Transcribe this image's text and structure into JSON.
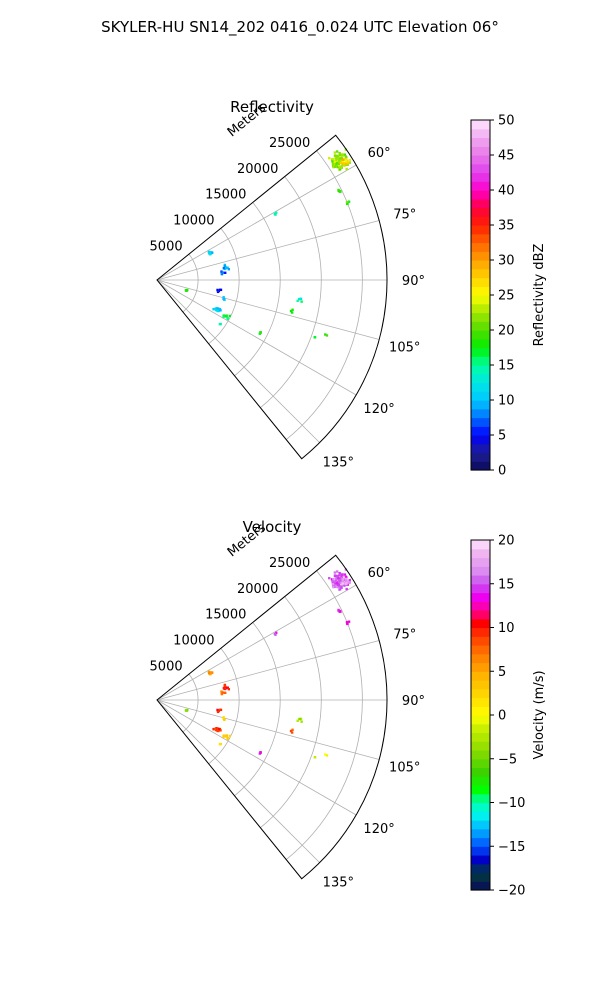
{
  "figure": {
    "suptitle": "SKYLER-HU  SN14_202  0416_0.024 UTC Elevation 06°"
  },
  "chart_data": [
    {
      "type": "polar-scatter",
      "title": "Reflectivity",
      "radial_label": "Meters",
      "theta_range_deg": [
        51,
        141
      ],
      "r_range": [
        0,
        28000
      ],
      "radial_ticks": [
        5000,
        10000,
        15000,
        20000,
        25000
      ],
      "radial_tick_labels": [
        "5000",
        "10000",
        "15000",
        "20000",
        "25000"
      ],
      "angle_ticks": [
        60,
        75,
        90,
        105,
        120,
        135
      ],
      "angle_tick_labels": [
        "60°",
        "75°",
        "90°",
        "105°",
        "120°",
        "135°"
      ],
      "grid": true,
      "colorbar": {
        "label": "Reflectivity dBZ",
        "min": 0,
        "max": 50,
        "ticks": [
          0,
          5,
          10,
          15,
          20,
          25,
          30,
          35,
          40,
          45,
          50
        ],
        "tick_labels": [
          "0",
          "5",
          "10",
          "15",
          "20",
          "25",
          "30",
          "35",
          "40",
          "45",
          "50"
        ]
      },
      "clusters": [
        {
          "angle": 57,
          "r": 26500,
          "v": 22,
          "n": 95,
          "sa": 3.5,
          "sr": 1500
        },
        {
          "angle": 58,
          "r": 27000,
          "v": 28,
          "n": 14,
          "sa": 1.5,
          "sr": 600
        },
        {
          "angle": 64,
          "r": 24800,
          "v": 20,
          "n": 5,
          "sa": 1.0,
          "sr": 400
        },
        {
          "angle": 68,
          "r": 25000,
          "v": 19,
          "n": 5,
          "sa": 1.0,
          "sr": 500
        },
        {
          "angle": 61,
          "r": 16500,
          "v": 15,
          "n": 3,
          "sa": 0.8,
          "sr": 300
        },
        {
          "angle": 63,
          "r": 7200,
          "v": 11,
          "n": 14,
          "sa": 3.0,
          "sr": 400
        },
        {
          "angle": 80,
          "r": 8400,
          "v": 10,
          "n": 12,
          "sa": 3.0,
          "sr": 500
        },
        {
          "angle": 84,
          "r": 8000,
          "v": 7,
          "n": 6,
          "sa": 3.0,
          "sr": 500
        },
        {
          "angle": 100,
          "r": 7500,
          "v": 6,
          "n": 6,
          "sa": 3.0,
          "sr": 500
        },
        {
          "angle": 105,
          "r": 8500,
          "v": 9,
          "n": 4,
          "sa": 2.0,
          "sr": 500
        },
        {
          "angle": 116,
          "r": 8200,
          "v": 10,
          "n": 14,
          "sa": 2.5,
          "sr": 700
        },
        {
          "angle": 118,
          "r": 9500,
          "v": 17,
          "n": 10,
          "sa": 2.0,
          "sr": 600
        },
        {
          "angle": 109,
          "r": 3800,
          "v": 18,
          "n": 6,
          "sa": 2.0,
          "sr": 300
        },
        {
          "angle": 125,
          "r": 9500,
          "v": 14,
          "n": 2,
          "sa": 1.5,
          "sr": 400
        },
        {
          "angle": 98,
          "r": 17500,
          "v": 14,
          "n": 5,
          "sa": 1.0,
          "sr": 600
        },
        {
          "angle": 103,
          "r": 17000,
          "v": 18,
          "n": 3,
          "sa": 1.0,
          "sr": 400
        },
        {
          "angle": 117,
          "r": 14200,
          "v": 18,
          "n": 4,
          "sa": 1.0,
          "sr": 400
        },
        {
          "angle": 108,
          "r": 21600,
          "v": 18,
          "n": 2,
          "sa": 0.5,
          "sr": 300
        },
        {
          "angle": 110,
          "r": 20500,
          "v": 17,
          "n": 2,
          "sa": 0.5,
          "sr": 300
        }
      ]
    },
    {
      "type": "polar-scatter",
      "title": "Velocity",
      "radial_label": "Meters",
      "theta_range_deg": [
        51,
        141
      ],
      "r_range": [
        0,
        28000
      ],
      "radial_ticks": [
        5000,
        10000,
        15000,
        20000,
        25000
      ],
      "radial_tick_labels": [
        "5000",
        "10000",
        "15000",
        "20000",
        "25000"
      ],
      "angle_ticks": [
        60,
        75,
        90,
        105,
        120,
        135
      ],
      "angle_tick_labels": [
        "60°",
        "75°",
        "90°",
        "105°",
        "120°",
        "135°"
      ],
      "grid": true,
      "colorbar": {
        "label": "Velocity (m/s)",
        "min": -20,
        "max": 20,
        "ticks": [
          -20,
          -15,
          -10,
          -5,
          0,
          5,
          10,
          15,
          20
        ],
        "tick_labels": [
          "−20",
          "−15",
          "−10",
          "−5",
          "0",
          "5",
          "10",
          "15",
          "20"
        ]
      },
      "clusters": [
        {
          "angle": 57,
          "r": 26500,
          "v": 15,
          "n": 95,
          "sa": 3.5,
          "sr": 1500
        },
        {
          "angle": 58,
          "r": 27000,
          "v": 17,
          "n": 14,
          "sa": 1.5,
          "sr": 600
        },
        {
          "angle": 64,
          "r": 24800,
          "v": 14,
          "n": 5,
          "sa": 1.0,
          "sr": 400
        },
        {
          "angle": 68,
          "r": 25000,
          "v": 14,
          "n": 5,
          "sa": 1.0,
          "sr": 500
        },
        {
          "angle": 61,
          "r": 16500,
          "v": 14,
          "n": 3,
          "sa": 0.8,
          "sr": 300
        },
        {
          "angle": 63,
          "r": 7200,
          "v": 6,
          "n": 14,
          "sa": 3.0,
          "sr": 400
        },
        {
          "angle": 80,
          "r": 8400,
          "v": 10,
          "n": 12,
          "sa": 3.0,
          "sr": 500
        },
        {
          "angle": 84,
          "r": 8000,
          "v": 8,
          "n": 6,
          "sa": 3.0,
          "sr": 500
        },
        {
          "angle": 100,
          "r": 7500,
          "v": 9,
          "n": 6,
          "sa": 3.0,
          "sr": 500
        },
        {
          "angle": 105,
          "r": 8500,
          "v": 2,
          "n": 4,
          "sa": 2.0,
          "sr": 500
        },
        {
          "angle": 116,
          "r": 8200,
          "v": 9,
          "n": 14,
          "sa": 2.5,
          "sr": 700
        },
        {
          "angle": 118,
          "r": 9500,
          "v": 3,
          "n": 10,
          "sa": 2.0,
          "sr": 600
        },
        {
          "angle": 109,
          "r": 3800,
          "v": -4,
          "n": 6,
          "sa": 2.0,
          "sr": 300
        },
        {
          "angle": 125,
          "r": 9500,
          "v": 1,
          "n": 2,
          "sa": 1.5,
          "sr": 400
        },
        {
          "angle": 98,
          "r": 17500,
          "v": -3,
          "n": 5,
          "sa": 1.0,
          "sr": 600
        },
        {
          "angle": 103,
          "r": 17000,
          "v": 9,
          "n": 3,
          "sa": 1.0,
          "sr": 400
        },
        {
          "angle": 117,
          "r": 14200,
          "v": 14,
          "n": 4,
          "sa": 1.0,
          "sr": 400
        },
        {
          "angle": 108,
          "r": 21600,
          "v": 1,
          "n": 2,
          "sa": 0.5,
          "sr": 300
        },
        {
          "angle": 110,
          "r": 20500,
          "v": -2,
          "n": 2,
          "sa": 0.5,
          "sr": 300
        }
      ]
    }
  ]
}
